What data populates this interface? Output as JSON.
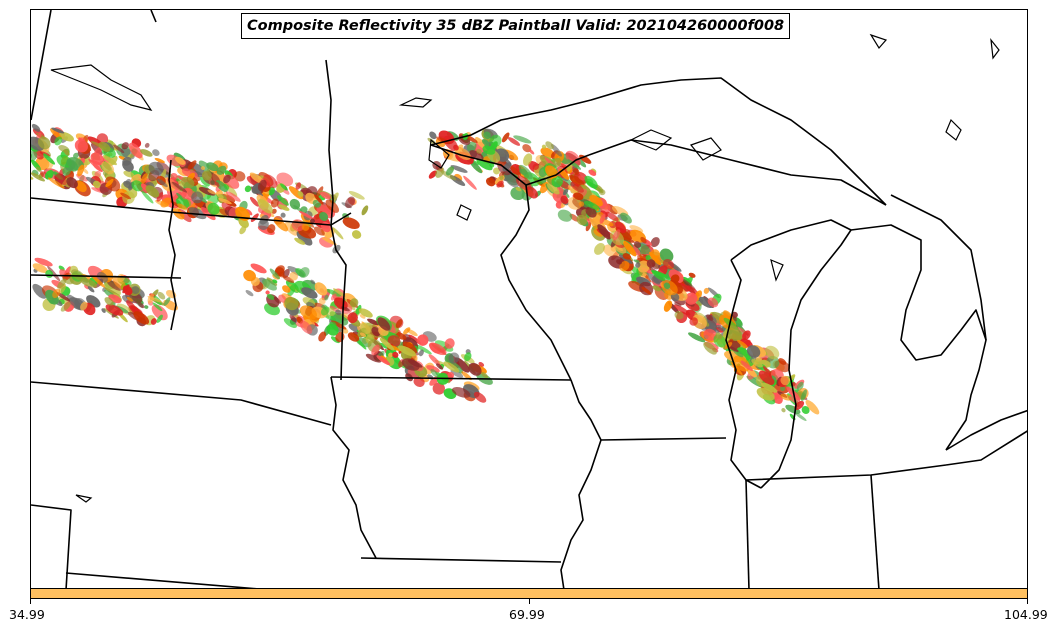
{
  "title": "Composite Reflectivity 35 dBZ Paintball Valid: 202104260000f008",
  "colorbar": {
    "color": "#ffc060",
    "tick_labels": [
      "34.99",
      "69.99",
      "104.99"
    ]
  },
  "colors": {
    "boundaries": "#000000",
    "member_colors": [
      "#e02020",
      "#ff5555",
      "#2ecc2e",
      "#4aa84a",
      "#ff8c00",
      "#ffb347",
      "#8b2a2a",
      "#9aa030",
      "#c0c040",
      "#666666",
      "#cc3300"
    ]
  }
}
